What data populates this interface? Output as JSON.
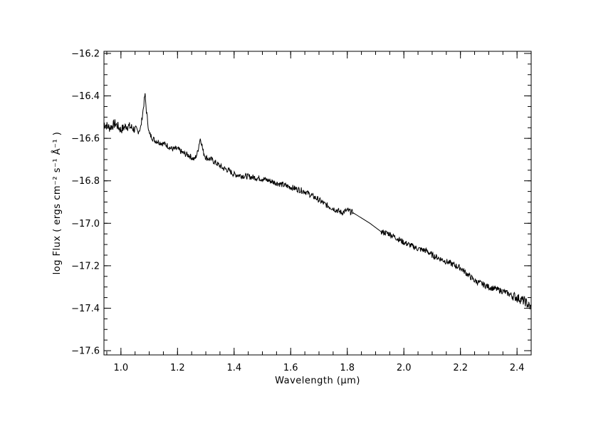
{
  "chart_data": {
    "type": "line",
    "xlabel": "Wavelength (μm)",
    "ylabel": "log Flux ( ergs cm⁻² s⁻¹ Å⁻¹ )",
    "xlim": [
      0.94,
      2.45
    ],
    "ylim": [
      -17.62,
      -16.19
    ],
    "x_ticks": [
      1.0,
      1.2,
      1.4,
      1.6,
      1.8,
      2.0,
      2.2,
      2.4
    ],
    "x_tick_labels": [
      "1.0",
      "1.2",
      "1.4",
      "1.6",
      "1.8",
      "2.0",
      "2.2",
      "2.4"
    ],
    "y_ticks": [
      -17.6,
      -17.4,
      -17.2,
      -17.0,
      -16.8,
      -16.6,
      -16.4,
      -16.2
    ],
    "y_tick_labels": [
      "−17.6",
      "−17.4",
      "−17.2",
      "−17.0",
      "−16.8",
      "−16.6",
      "−16.4",
      "−16.2"
    ],
    "grid": false,
    "series": [
      {
        "color": "#000000",
        "x": [
          0.94,
          0.96,
          0.98,
          1.0,
          1.02,
          1.04,
          1.06,
          1.07,
          1.08,
          1.085,
          1.09,
          1.1,
          1.12,
          1.14,
          1.16,
          1.18,
          1.2,
          1.22,
          1.24,
          1.26,
          1.27,
          1.28,
          1.285,
          1.29,
          1.3,
          1.32,
          1.34,
          1.36,
          1.38,
          1.4,
          1.45,
          1.5,
          1.55,
          1.6,
          1.65,
          1.7,
          1.72,
          1.75,
          1.78,
          1.8,
          1.82,
          1.88,
          1.92,
          1.95,
          2.0,
          2.05,
          2.08,
          2.1,
          2.15,
          2.2,
          2.25,
          2.3,
          2.35,
          2.4,
          2.43,
          2.45
        ],
        "y": [
          -16.53,
          -16.55,
          -16.53,
          -16.56,
          -16.54,
          -16.55,
          -16.57,
          -16.55,
          -16.45,
          -16.39,
          -16.47,
          -16.58,
          -16.61,
          -16.62,
          -16.63,
          -16.65,
          -16.65,
          -16.67,
          -16.68,
          -16.7,
          -16.67,
          -16.6,
          -16.62,
          -16.66,
          -16.69,
          -16.7,
          -16.72,
          -16.74,
          -16.75,
          -16.77,
          -16.78,
          -16.79,
          -16.81,
          -16.83,
          -16.85,
          -16.89,
          -16.91,
          -16.93,
          -16.95,
          -16.94,
          -16.95,
          -17.0,
          -17.04,
          -17.05,
          -17.09,
          -17.12,
          -17.13,
          -17.15,
          -17.18,
          -17.21,
          -17.27,
          -17.3,
          -17.32,
          -17.35,
          -17.37,
          -17.4
        ]
      }
    ]
  }
}
